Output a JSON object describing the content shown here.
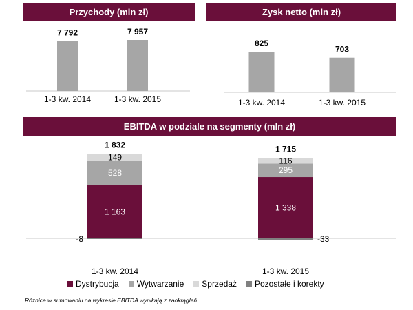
{
  "chart_data": [
    {
      "type": "bar",
      "title": "Przychody (mln zł)",
      "categories": [
        "1-3 kw. 2014",
        "1-3 kw. 2015"
      ],
      "values": [
        7792,
        7957
      ],
      "value_labels": [
        "7 792",
        "7 957"
      ],
      "bar_color": "#a6a6a6",
      "grid": false
    },
    {
      "type": "bar",
      "title": "Zysk netto (mln zł)",
      "categories": [
        "1-3 kw. 2014",
        "1-3 kw. 2015"
      ],
      "values": [
        825,
        703
      ],
      "value_labels": [
        "825",
        "703"
      ],
      "bar_color": "#a6a6a6",
      "grid": false
    },
    {
      "type": "bar",
      "stacked": true,
      "title": "EBITDA w podziale na segmenty (mln zł)",
      "categories": [
        "1-3 kw. 2014",
        "1-3 kw. 2015"
      ],
      "totals": [
        1832,
        1715
      ],
      "total_labels": [
        "1 832",
        "1 715"
      ],
      "series": [
        {
          "name": "Dystrybucja",
          "color": "#6a0f3a",
          "values": [
            1163,
            1338
          ],
          "labels": [
            "1 163",
            "1 338"
          ]
        },
        {
          "name": "Wytwarzanie",
          "color": "#a6a6a6",
          "values": [
            528,
            295
          ],
          "labels": [
            "528",
            "295"
          ]
        },
        {
          "name": "Sprzedaż",
          "color": "#d9d9d9",
          "values": [
            149,
            116
          ],
          "labels": [
            "149",
            "116"
          ]
        },
        {
          "name": "Pozostałe i korekty",
          "color": "#808080",
          "values": [
            -8,
            -33
          ],
          "labels": [
            "-8",
            "-33"
          ]
        }
      ],
      "legend": "bottom",
      "grid": false
    }
  ],
  "footnote": "Różnice w sumowaniu na wykresie EBITDA wynikają z zaokrągleń"
}
